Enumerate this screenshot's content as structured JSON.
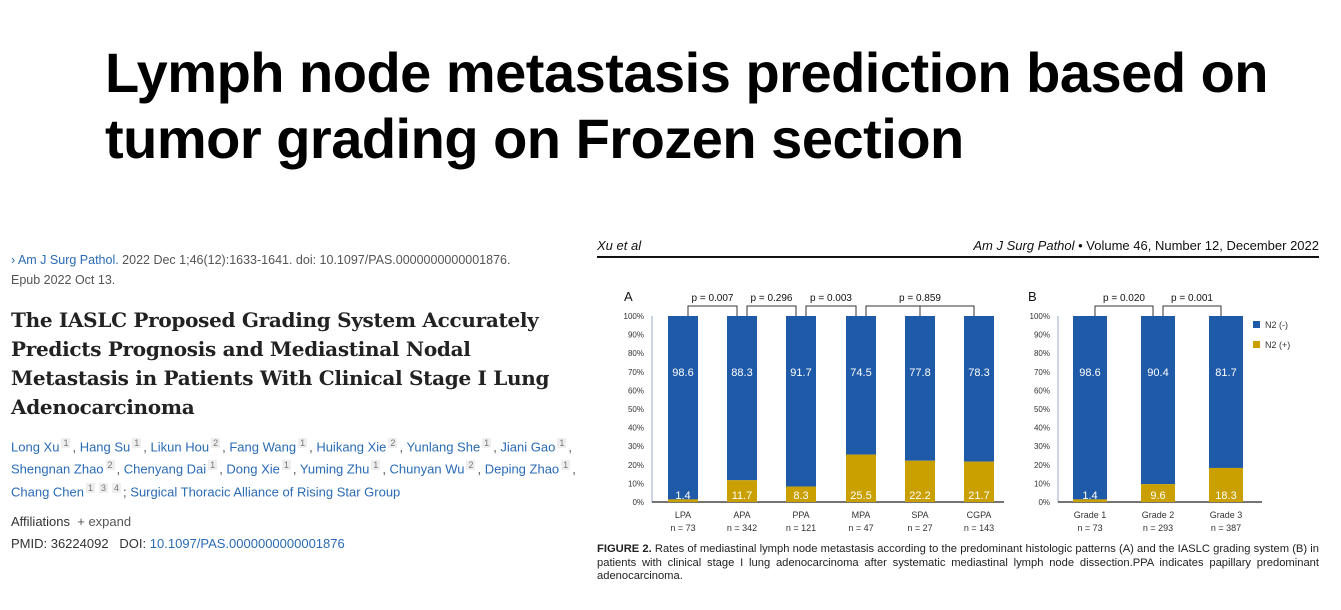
{
  "slide_title": "Lymph node metastasis prediction based on tumor grading on Frozen section",
  "citation": {
    "journal": "Am J Surg Pathol.",
    "details": " 2022 Dec 1;46(12):1633-1641. doi: 10.1097/PAS.0000000000001876.",
    "epub": "Epub 2022 Oct 13."
  },
  "paper_title": "The IASLC Proposed Grading System Accurately Predicts Prognosis and Mediastinal Nodal Metastasis in Patients With Clinical Stage I Lung Adenocarcinoma",
  "authors": [
    {
      "name": "Long Xu",
      "aff": "1"
    },
    {
      "name": "Hang Su",
      "aff": "1"
    },
    {
      "name": "Likun Hou",
      "aff": "2"
    },
    {
      "name": "Fang Wang",
      "aff": "1"
    },
    {
      "name": "Huikang Xie",
      "aff": "2"
    },
    {
      "name": "Yunlang She",
      "aff": "1"
    },
    {
      "name": "Jiani Gao",
      "aff": "1"
    },
    {
      "name": "Shengnan Zhao",
      "aff": "2"
    },
    {
      "name": "Chenyang Dai",
      "aff": "1"
    },
    {
      "name": "Dong Xie",
      "aff": "1"
    },
    {
      "name": "Yuming Zhu",
      "aff": "1"
    },
    {
      "name": "Chunyan Wu",
      "aff": "2"
    },
    {
      "name": "Deping Zhao",
      "aff": "1"
    },
    {
      "name": "Chang Chen",
      "aff": "1 3 4"
    }
  ],
  "group": "Surgical Thoracic Alliance of Rising Star Group",
  "affiliations_label": "Affiliations",
  "expand_label": "+ expand",
  "pmid": "PMID: 36224092",
  "doi_label": "DOI:",
  "doi": "10.1097/PAS.0000000000001876",
  "figure_header": {
    "left": "Xu et al",
    "journal": "Am J Surg Pathol",
    "rest": " • Volume 46, Number 12, December 2022"
  },
  "caption": {
    "label": "FIGURE 2.",
    "text": " Rates of mediastinal lymph node metastasis according to the predominant histologic patterns (A) and the IASLC grading system (B) in patients with clinical stage I lung adenocarcinoma after systematic mediastinal lymph node dissection.PPA indicates papillary predominant adenocarcinoma."
  },
  "colors": {
    "n2neg": "#1f5aa8",
    "n2pos": "#c9a000"
  },
  "chart_data": [
    {
      "type": "bar",
      "stacked": true,
      "panel": "A",
      "categories": [
        "LPA",
        "APA",
        "PPA",
        "MPA",
        "SPA",
        "CGPA"
      ],
      "n": [
        "n = 73",
        "n = 342",
        "n = 121",
        "n = 47",
        "n = 27",
        "n = 143"
      ],
      "series": [
        {
          "name": "N2 (-)",
          "values": [
            98.6,
            88.3,
            91.7,
            74.5,
            77.8,
            78.3
          ]
        },
        {
          "name": "N2 (+)",
          "values": [
            1.4,
            11.7,
            8.3,
            25.5,
            22.2,
            21.7
          ]
        }
      ],
      "pvalues": [
        {
          "from": 0,
          "to": 1,
          "label": "p = 0.007"
        },
        {
          "from": 1,
          "to": 2,
          "label": "p = 0.296"
        },
        {
          "from": 2,
          "to": 3,
          "label": "p = 0.003"
        },
        {
          "from": 3,
          "to": 5,
          "label": "p = 0.859",
          "mid": 4
        }
      ],
      "yticks": [
        "0%",
        "10%",
        "20%",
        "30%",
        "40%",
        "50%",
        "60%",
        "70%",
        "80%",
        "90%",
        "100%"
      ],
      "ylim": [
        0,
        100
      ]
    },
    {
      "type": "bar",
      "stacked": true,
      "panel": "B",
      "categories": [
        "Grade 1",
        "Grade 2",
        "Grade 3"
      ],
      "n": [
        "n = 73",
        "n = 293",
        "n = 387"
      ],
      "series": [
        {
          "name": "N2 (-)",
          "values": [
            98.6,
            90.4,
            81.7
          ]
        },
        {
          "name": "N2 (+)",
          "values": [
            1.4,
            9.6,
            18.3
          ]
        }
      ],
      "pvalues": [
        {
          "from": 0,
          "to": 1,
          "label": "p = 0.020"
        },
        {
          "from": 1,
          "to": 2,
          "label": "p = 0.001"
        }
      ],
      "yticks": [
        "0%",
        "10%",
        "20%",
        "30%",
        "40%",
        "50%",
        "60%",
        "70%",
        "80%",
        "90%",
        "100%"
      ],
      "ylim": [
        0,
        100
      ],
      "legend": "right"
    }
  ]
}
